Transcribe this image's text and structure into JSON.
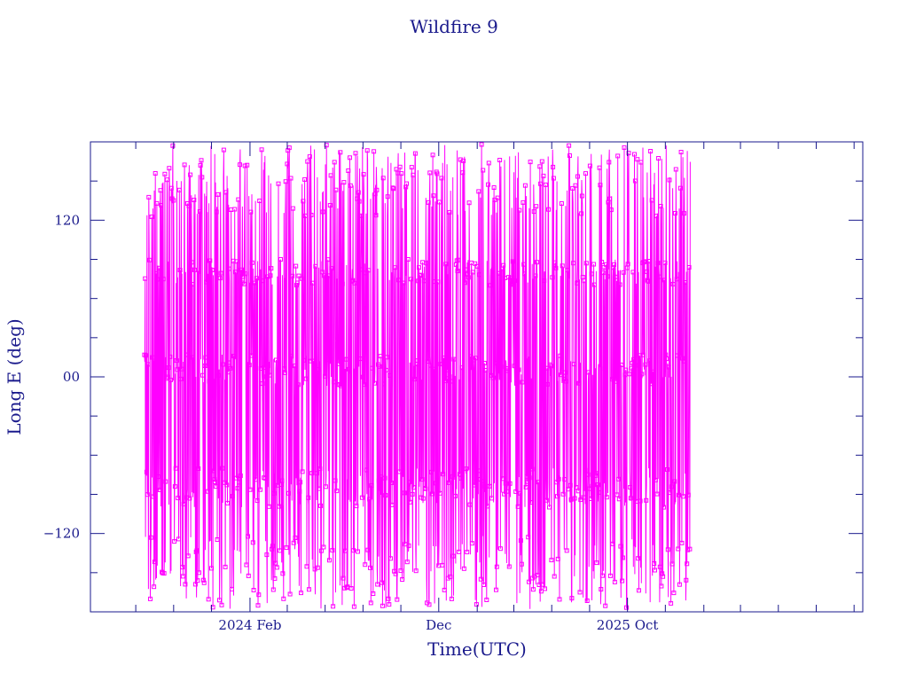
{
  "colors": {
    "axis": "#1a1a8c",
    "series": "#ff00ff",
    "background": "#ffffff"
  },
  "chart_data": {
    "type": "line",
    "title": "Wildfire 9",
    "xlabel": "Time(UTC)",
    "ylabel": "Long E (deg)",
    "markers": "square",
    "grid": false,
    "xlim": [
      "2023-05-20",
      "2026-10-15"
    ],
    "ylim": [
      -180,
      180
    ],
    "x_tick_labels": [
      "2024 Feb",
      "Dec",
      "2025 Oct"
    ],
    "x_ticks": [
      "2024-02-01",
      "2024-12-01",
      "2025-10-01"
    ],
    "y_tick_labels": [
      "−120",
      "00",
      "120"
    ],
    "y_ticks": [
      -120,
      0,
      120
    ],
    "data_range": [
      "2023-08-15",
      "2026-01-10"
    ],
    "series": [
      {
        "bands": [
          {
            "center": 150,
            "spread": 28
          },
          {
            "center": 80,
            "spread": 10
          },
          {
            "center": 5,
            "spread": 12
          },
          {
            "center": -85,
            "spread": 15
          },
          {
            "center": -150,
            "spread": 28
          }
        ]
      }
    ]
  }
}
